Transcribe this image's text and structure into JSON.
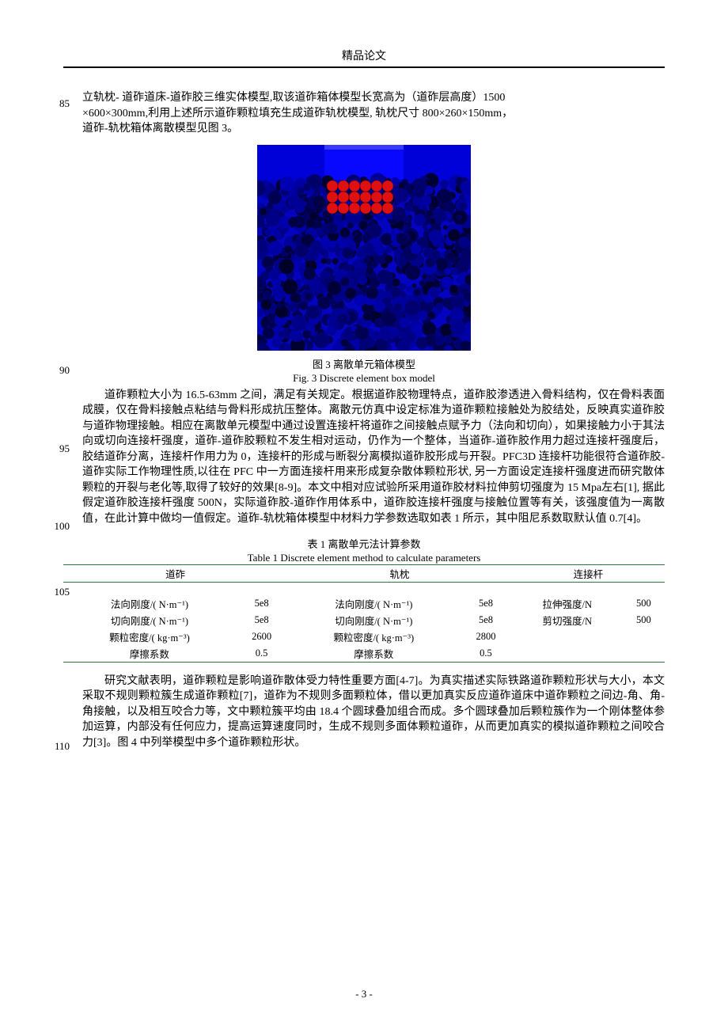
{
  "header": {
    "title": "精品论文"
  },
  "line_numbers": {
    "n85": "85",
    "n90": "90",
    "n95": "95",
    "n100": "100",
    "n105": "105",
    "n110": "110"
  },
  "para1": {
    "l1": "立轨枕- 道砟道床-道砟胶三维实体模型,取该道砟箱体模型长宽高为（道砟层高度）1500",
    "l2": "×600×300mm,利用上述所示道砟颗粒填充生成道砟轨枕模型, 轨枕尺寸 800×260×150mm，",
    "l3": "道砟-轨枕箱体离散模型见图 3。"
  },
  "figure3": {
    "caption_cn": "图 3   离散单元箱体模型",
    "caption_en": "Fig. 3  Discrete element box model",
    "colors": {
      "bg_top": "#0000d8",
      "sleeper": "#0808ff",
      "sleeper_highlight": "#3a3aff",
      "ballast_stroke": "#0202a8",
      "ballast_fill": "#0404c0",
      "red_ball": "#e01010"
    }
  },
  "para2": {
    "t": "道砟颗粒大小为 16.5-63mm 之间，满足有关规定。根据道砟胶物理特点，道砟胶渗透进入骨料结构，仅在骨料表面成膜，仅在骨料接触点粘结与骨料形成抗压整体。离散元仿真中设定标准为道砟颗粒接触处为胶结处，反映真实道砟胶与道砟物理接触。相应在离散单元模型中通过设置连接杆将道砟之间接触点赋予力（法向和切向），如果接触力小于其法向或切向连接杆强度，道砟-道砟胶颗粒不发生相对运动，仍作为一个整体，当道砟-道砟胶作用力超过连接杆强度后，胶结道砟分离，连接杆作用力为 0，连接杆的形成与断裂分离模拟道砟胶形成与开裂。PFC3D 连接杆功能很符合道砟胶-道砟实际工作物理性质,以往在 PFC 中一方面连接杆用来形成复杂散体颗粒形状, 另一方面设定连接杆强度进而研究散体颗粒的开裂与老化等,取得了较好的效果[8-9]。本文中相对应试验所采用道砟胶材料拉伸剪切强度为 15 Mpa左右[1], 据此假定道砟胶连接杆强度 500N，实际道砟胶-道砟作用体系中，道砟胶连接杆强度与接触位置等有关，该强度值为一离散值，在此计算中做均一值假定。道砟-轨枕箱体模型中材料力学参数选取如表 1 所示，其中阻尼系数取默认值 0.7[4]。"
  },
  "table1": {
    "title_cn": "表 1   离散单元法计算参数",
    "title_en": "Table 1  Discrete element method to calculate parameters",
    "group_headers": {
      "a": "道砟",
      "b": "轨枕",
      "c": "连接杆"
    },
    "rows": [
      {
        "a_label": "法向刚度/( N·m⁻¹)",
        "a_val": "5e8",
        "b_label": "法向刚度/( N·m⁻¹)",
        "b_val": "5e8",
        "c_label": "拉伸强度/N",
        "c_val": "500"
      },
      {
        "a_label": "切向刚度/( N·m⁻¹)",
        "a_val": "5e8",
        "b_label": "切向刚度/( N·m⁻¹)",
        "b_val": "5e8",
        "c_label": "剪切强度/N",
        "c_val": "500"
      },
      {
        "a_label": "颗粒密度/( kg·m⁻³)",
        "a_val": "2600",
        "b_label": "颗粒密度/( kg·m⁻³)",
        "b_val": "2800",
        "c_label": "",
        "c_val": ""
      },
      {
        "a_label": "摩擦系数",
        "a_val": "0.5",
        "b_label": "摩擦系数",
        "b_val": "0.5",
        "c_label": "",
        "c_val": ""
      }
    ],
    "colors": {
      "rule": "#2a7a3f"
    }
  },
  "para3": {
    "t": "研究文献表明，道砟颗粒是影响道砟散体受力特性重要方面[4-7]。为真实描述实际铁路道砟颗粒形状与大小，本文采取不规则颗粒簇生成道砟颗粒[7]，道砟为不规则多面颗粒体，借以更加真实反应道砟道床中道砟颗粒之间边-角、角-角接触，以及相互咬合力等，文中颗粒簇平均由 18.4 个圆球叠加组合而成。多个圆球叠加后颗粒簇作为一个刚体整体参加运算，内部没有任何应力，提高运算速度同时，生成不规则多面体颗粒道砟，从而更加真实的模拟道砟颗粒之间咬合力[3]。图 4 中列举模型中多个道砟颗粒形状。"
  },
  "footer": {
    "page": "- 3 -"
  }
}
